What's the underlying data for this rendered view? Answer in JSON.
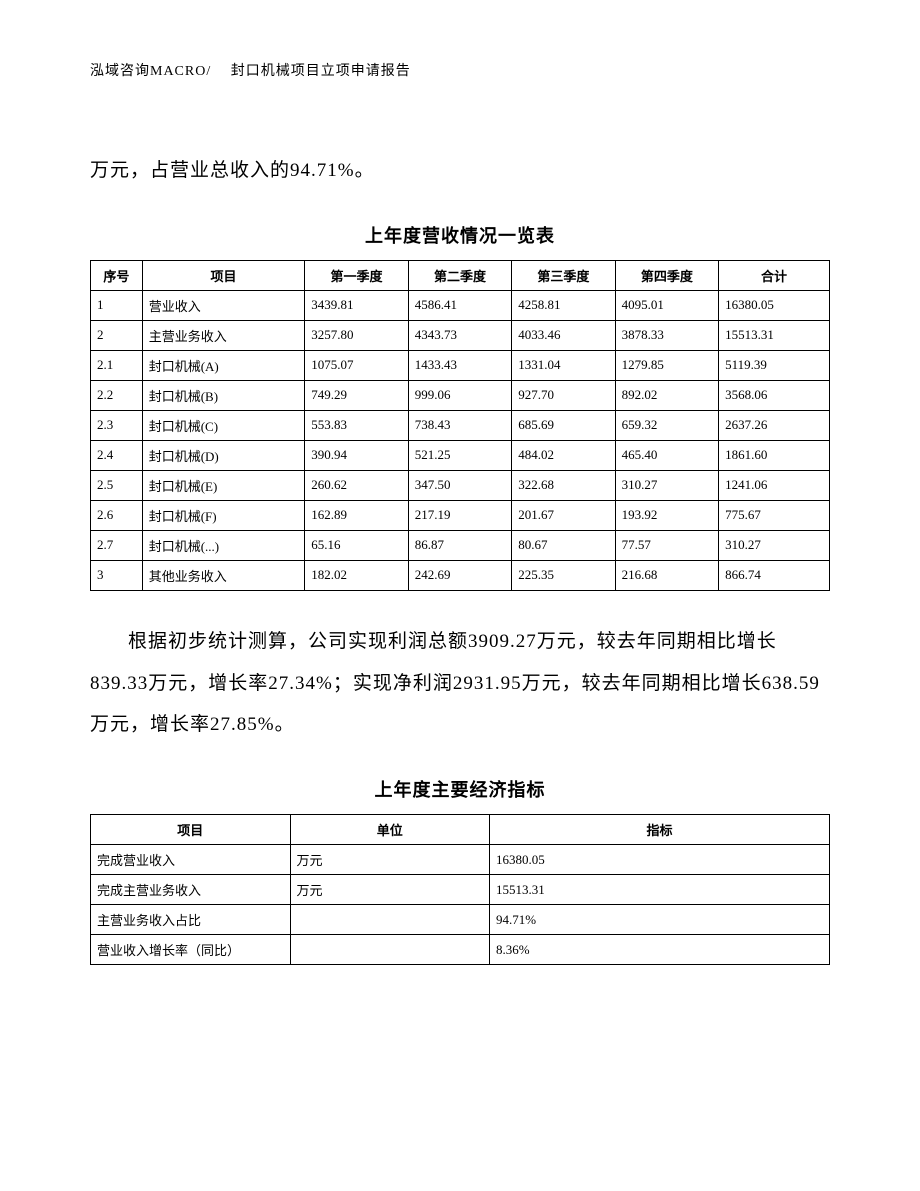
{
  "header": {
    "text": "泓域咨询MACRO/　 封口机械项目立项申请报告"
  },
  "para1": "万元，占营业总收入的94.71%。",
  "table1": {
    "title": "上年度营收情况一览表",
    "columns": [
      "序号",
      "项目",
      "第一季度",
      "第二季度",
      "第三季度",
      "第四季度",
      "合计"
    ],
    "rows": [
      [
        "1",
        "营业收入",
        "3439.81",
        "4586.41",
        "4258.81",
        "4095.01",
        "16380.05"
      ],
      [
        "2",
        "主营业务收入",
        "3257.80",
        "4343.73",
        "4033.46",
        "3878.33",
        "15513.31"
      ],
      [
        "2.1",
        "封口机械(A)",
        "1075.07",
        "1433.43",
        "1331.04",
        "1279.85",
        "5119.39"
      ],
      [
        "2.2",
        "封口机械(B)",
        "749.29",
        "999.06",
        "927.70",
        "892.02",
        "3568.06"
      ],
      [
        "2.3",
        "封口机械(C)",
        "553.83",
        "738.43",
        "685.69",
        "659.32",
        "2637.26"
      ],
      [
        "2.4",
        "封口机械(D)",
        "390.94",
        "521.25",
        "484.02",
        "465.40",
        "1861.60"
      ],
      [
        "2.5",
        "封口机械(E)",
        "260.62",
        "347.50",
        "322.68",
        "310.27",
        "1241.06"
      ],
      [
        "2.6",
        "封口机械(F)",
        "162.89",
        "217.19",
        "201.67",
        "193.92",
        "775.67"
      ],
      [
        "2.7",
        "封口机械(...)",
        "65.16",
        "86.87",
        "80.67",
        "77.57",
        "310.27"
      ],
      [
        "3",
        "其他业务收入",
        "182.02",
        "242.69",
        "225.35",
        "216.68",
        "866.74"
      ]
    ]
  },
  "para2": "根据初步统计测算，公司实现利润总额3909.27万元，较去年同期相比增长839.33万元，增长率27.34%；实现净利润2931.95万元，较去年同期相比增长638.59万元，增长率27.85%。",
  "table2": {
    "title": "上年度主要经济指标",
    "columns": [
      "项目",
      "单位",
      "指标"
    ],
    "rows": [
      [
        "完成营业收入",
        "万元",
        "16380.05"
      ],
      [
        "完成主营业务收入",
        "万元",
        "15513.31"
      ],
      [
        "主营业务收入占比",
        "",
        "94.71%"
      ],
      [
        "营业收入增长率（同比）",
        "",
        "8.36%"
      ]
    ]
  }
}
